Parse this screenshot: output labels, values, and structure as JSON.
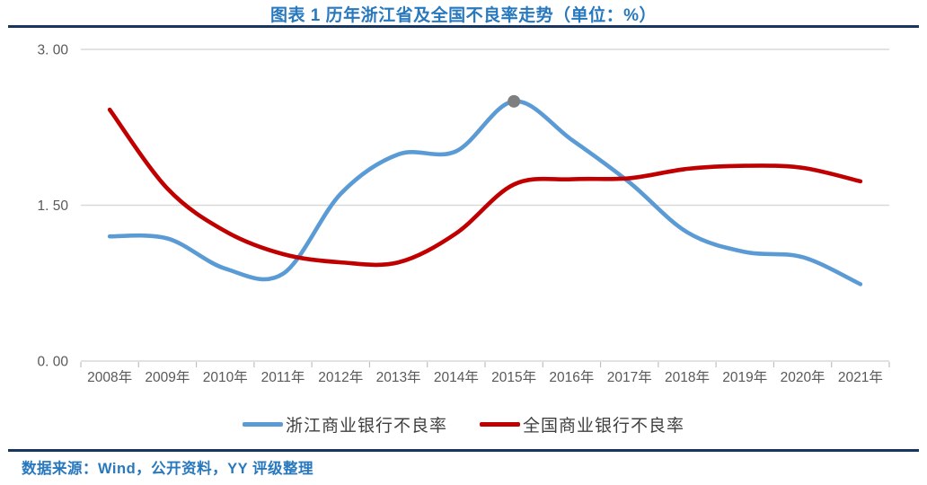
{
  "header": {
    "title": "图表 1 历年浙江省及全国不良率走势（单位：%）"
  },
  "footer": {
    "source": "数据来源：Wind，公开资料，YY 评级整理"
  },
  "colors": {
    "title_blue": "#2878BE",
    "rule_navy": "#16365F",
    "grid": "#D9D9D9",
    "axis_tick": "#BFBFBF",
    "axis_text": "#595959",
    "legend_text": "#3F3F3F",
    "zhejiang_blue": "#5B9BD5",
    "national_red": "#C00000",
    "marker_gray": "#7F7F7F",
    "background": "#FFFFFF"
  },
  "chart_data": {
    "type": "line",
    "title": "图表 1 历年浙江省及全国不良率走势（单位：%）",
    "unit": "%",
    "smoothed": true,
    "grid": "horizontal",
    "legend_position": "bottom",
    "ylim": [
      0,
      3
    ],
    "y_ticks": [
      {
        "label": "0. 00",
        "value": 0
      },
      {
        "label": "1. 50",
        "value": 1.5
      },
      {
        "label": "3. 00",
        "value": 3
      }
    ],
    "categories": [
      "2008年",
      "2009年",
      "2010年",
      "2011年",
      "2012年",
      "2013年",
      "2014年",
      "2015年",
      "2016年",
      "2017年",
      "2018年",
      "2019年",
      "2020年",
      "2021年"
    ],
    "series": [
      {
        "name": "浙江商业银行不良率",
        "color": "#5B9BD5",
        "values": [
          1.2,
          1.18,
          0.89,
          0.84,
          1.61,
          1.99,
          2.02,
          2.5,
          2.13,
          1.72,
          1.24,
          1.05,
          1.0,
          0.74
        ]
      },
      {
        "name": "全国商业银行不良率",
        "color": "#C00000",
        "values": [
          2.42,
          1.66,
          1.25,
          1.03,
          0.95,
          0.95,
          1.23,
          1.7,
          1.75,
          1.76,
          1.85,
          1.88,
          1.86,
          1.73
        ]
      }
    ],
    "marker": {
      "series": "浙江商业银行不良率",
      "category": "2015年",
      "value": 2.5,
      "color": "#7F7F7F"
    }
  }
}
